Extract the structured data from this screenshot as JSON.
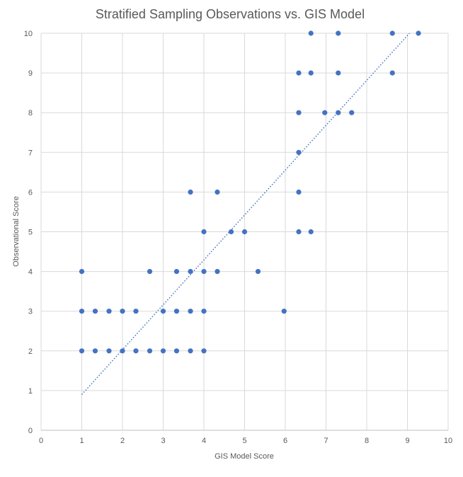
{
  "chart_data": {
    "type": "scatter",
    "title": "Stratified Sampling Observations vs. GIS Model",
    "xlabel": "GIS Model Score",
    "ylabel": "Observational Score",
    "xlim": [
      0,
      10
    ],
    "ylim": [
      0,
      10
    ],
    "x_ticks": [
      0,
      1,
      2,
      3,
      4,
      5,
      6,
      7,
      8,
      9,
      10
    ],
    "y_ticks": [
      0,
      1,
      2,
      3,
      4,
      5,
      6,
      7,
      8,
      9,
      10
    ],
    "grid": "vertical and horizontal",
    "legend": "none",
    "series": [
      {
        "color": "#4472c4",
        "points": [
          [
            1.0,
            2
          ],
          [
            1.33,
            2
          ],
          [
            1.67,
            2
          ],
          [
            2.0,
            2
          ],
          [
            2.33,
            2
          ],
          [
            2.67,
            2
          ],
          [
            3.0,
            2
          ],
          [
            3.33,
            2
          ],
          [
            3.67,
            2
          ],
          [
            4.0,
            2
          ],
          [
            1.0,
            3
          ],
          [
            1.33,
            3
          ],
          [
            1.67,
            3
          ],
          [
            2.0,
            3
          ],
          [
            2.33,
            3
          ],
          [
            3.0,
            3
          ],
          [
            3.33,
            3
          ],
          [
            3.67,
            3
          ],
          [
            4.0,
            3
          ],
          [
            5.97,
            3
          ],
          [
            1.0,
            4
          ],
          [
            2.67,
            4
          ],
          [
            3.33,
            4
          ],
          [
            3.67,
            4
          ],
          [
            4.0,
            4
          ],
          [
            4.33,
            4
          ],
          [
            5.33,
            4
          ],
          [
            4.0,
            5
          ],
          [
            4.67,
            5
          ],
          [
            5.0,
            5
          ],
          [
            6.33,
            5
          ],
          [
            6.63,
            5
          ],
          [
            3.67,
            6
          ],
          [
            4.33,
            6
          ],
          [
            6.33,
            6
          ],
          [
            6.33,
            7
          ],
          [
            6.33,
            8
          ],
          [
            6.97,
            8
          ],
          [
            7.3,
            8
          ],
          [
            7.63,
            8
          ],
          [
            6.33,
            9
          ],
          [
            6.63,
            9
          ],
          [
            7.3,
            9
          ],
          [
            8.63,
            9
          ],
          [
            6.63,
            10
          ],
          [
            7.3,
            10
          ],
          [
            8.63,
            10
          ],
          [
            9.27,
            10
          ]
        ]
      }
    ],
    "trendline": {
      "style": "dotted",
      "color": "#4472c4",
      "from": [
        1.0,
        0.9
      ],
      "to": [
        9.05,
        10.0
      ]
    }
  }
}
